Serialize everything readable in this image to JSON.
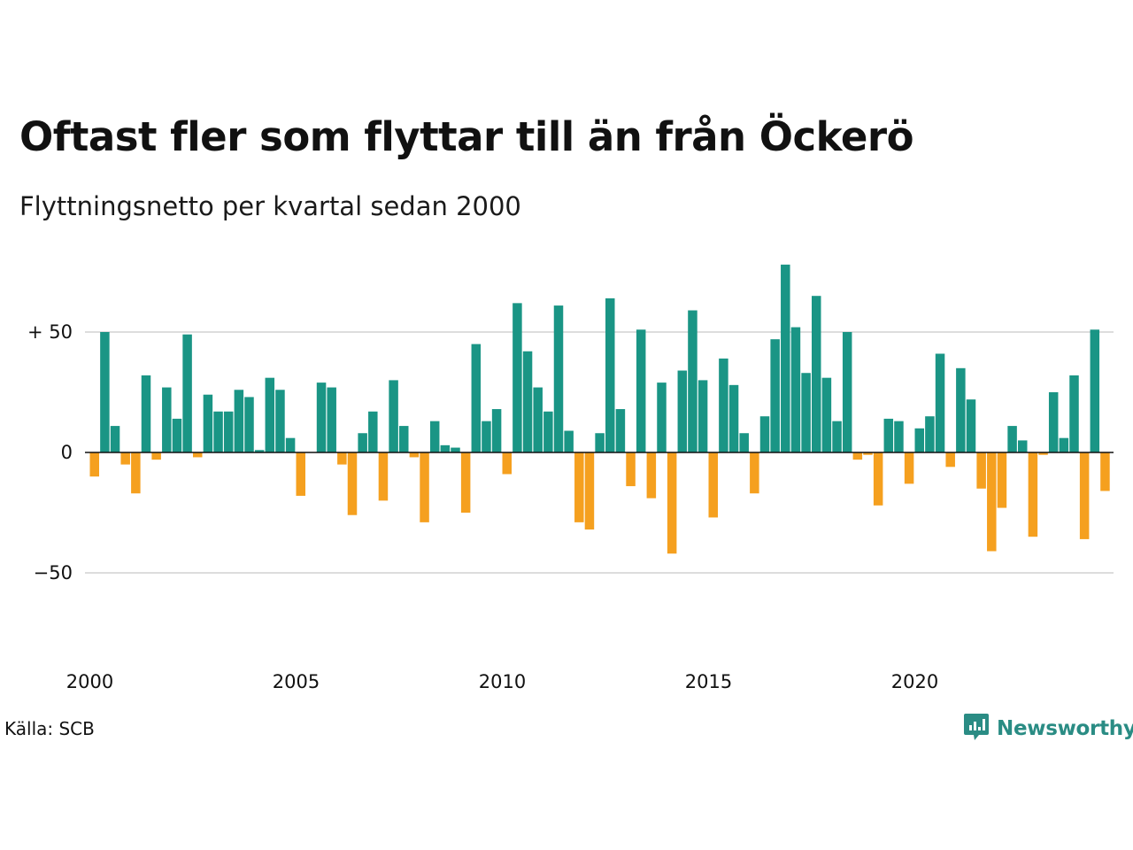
{
  "title": "Oftast fler som flyttar till än från Öckerö",
  "subtitle": "Flyttningsnetto per kvartal sedan 2000",
  "source": "Källa: SCB",
  "brand": {
    "name": "Newsworthy",
    "color": "#2a8c84",
    "icon": "newsworthy-chat-chart-icon"
  },
  "colors": {
    "positive": "#1a9585",
    "negative": "#f5a01f",
    "grid": "#dddddd",
    "zero": "#111111"
  },
  "chart_data": {
    "type": "bar",
    "title": "Oftast fler som flyttar till än från Öckerö",
    "subtitle": "Flyttningsnetto per kvartal sedan 2000",
    "xlabel": "",
    "ylabel": "",
    "ylim": [
      -80,
      80
    ],
    "grid": true,
    "y_ticks": [
      {
        "value": 50,
        "label": "+ 50"
      },
      {
        "value": 0,
        "label": "0"
      },
      {
        "value": -50,
        "label": "−50"
      }
    ],
    "x_ticks": [
      {
        "value": "2000",
        "label": "2000"
      },
      {
        "value": "2005",
        "label": "2005"
      },
      {
        "value": "2010",
        "label": "2010"
      },
      {
        "value": "2015",
        "label": "2015"
      },
      {
        "value": "2020",
        "label": "2020"
      }
    ],
    "start_period": "2000 Q1",
    "values": [
      -10,
      50,
      11,
      -5,
      -17,
      32,
      -3,
      27,
      14,
      49,
      -2,
      24,
      17,
      17,
      26,
      23,
      1,
      31,
      26,
      6,
      -18,
      0,
      29,
      27,
      -5,
      -26,
      8,
      17,
      -20,
      30,
      11,
      -2,
      -29,
      13,
      3,
      2,
      -25,
      45,
      13,
      18,
      -9,
      62,
      42,
      27,
      17,
      61,
      9,
      -29,
      -32,
      8,
      64,
      18,
      -14,
      51,
      -19,
      29,
      -42,
      34,
      59,
      30,
      -27,
      39,
      28,
      8,
      -17,
      15,
      47,
      78,
      52,
      33,
      65,
      31,
      13,
      50,
      -3,
      -1,
      -22,
      14,
      13,
      -13,
      10,
      15,
      41,
      -6,
      35,
      22,
      -15,
      -41,
      -23,
      11,
      5,
      -35,
      -1,
      25,
      6,
      32,
      -36,
      51,
      -16
    ]
  }
}
